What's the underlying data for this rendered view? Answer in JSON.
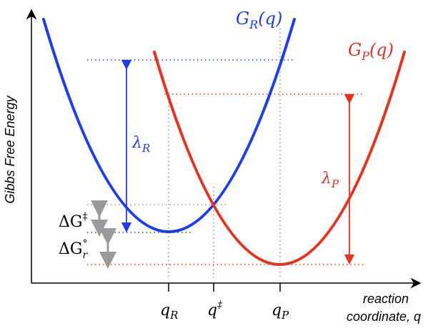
{
  "colors": {
    "reactant": "#1f3df0",
    "product": "#e8321e",
    "guide": "#9a9a9a",
    "axis": "#000000"
  },
  "axis": {
    "ylabel": "Gibbs Free Energy",
    "xlabel_line1": "reaction",
    "xlabel_line2": "coordinate, q"
  },
  "curves": {
    "reactant_main": "G",
    "reactant_sub": "R",
    "reactant_arg": "(q)",
    "product_main": "G",
    "product_sub": "P",
    "product_arg": "(q)"
  },
  "ticks": {
    "qR_main": "q",
    "qR_sub": "R",
    "qTS_main": "q",
    "qTS_sup": "‡",
    "qP_main": "q",
    "qP_sub": "P"
  },
  "labels": {
    "lambdaR_main": "λ",
    "lambdaR_sub": "R",
    "lambdaP_main": "λ",
    "lambdaP_sub": "P",
    "dGTS_main": "ΔG",
    "dGTS_sup": "‡",
    "dGr_main": "ΔG",
    "dGr_sup": "°",
    "dGr_sub": "r"
  }
}
